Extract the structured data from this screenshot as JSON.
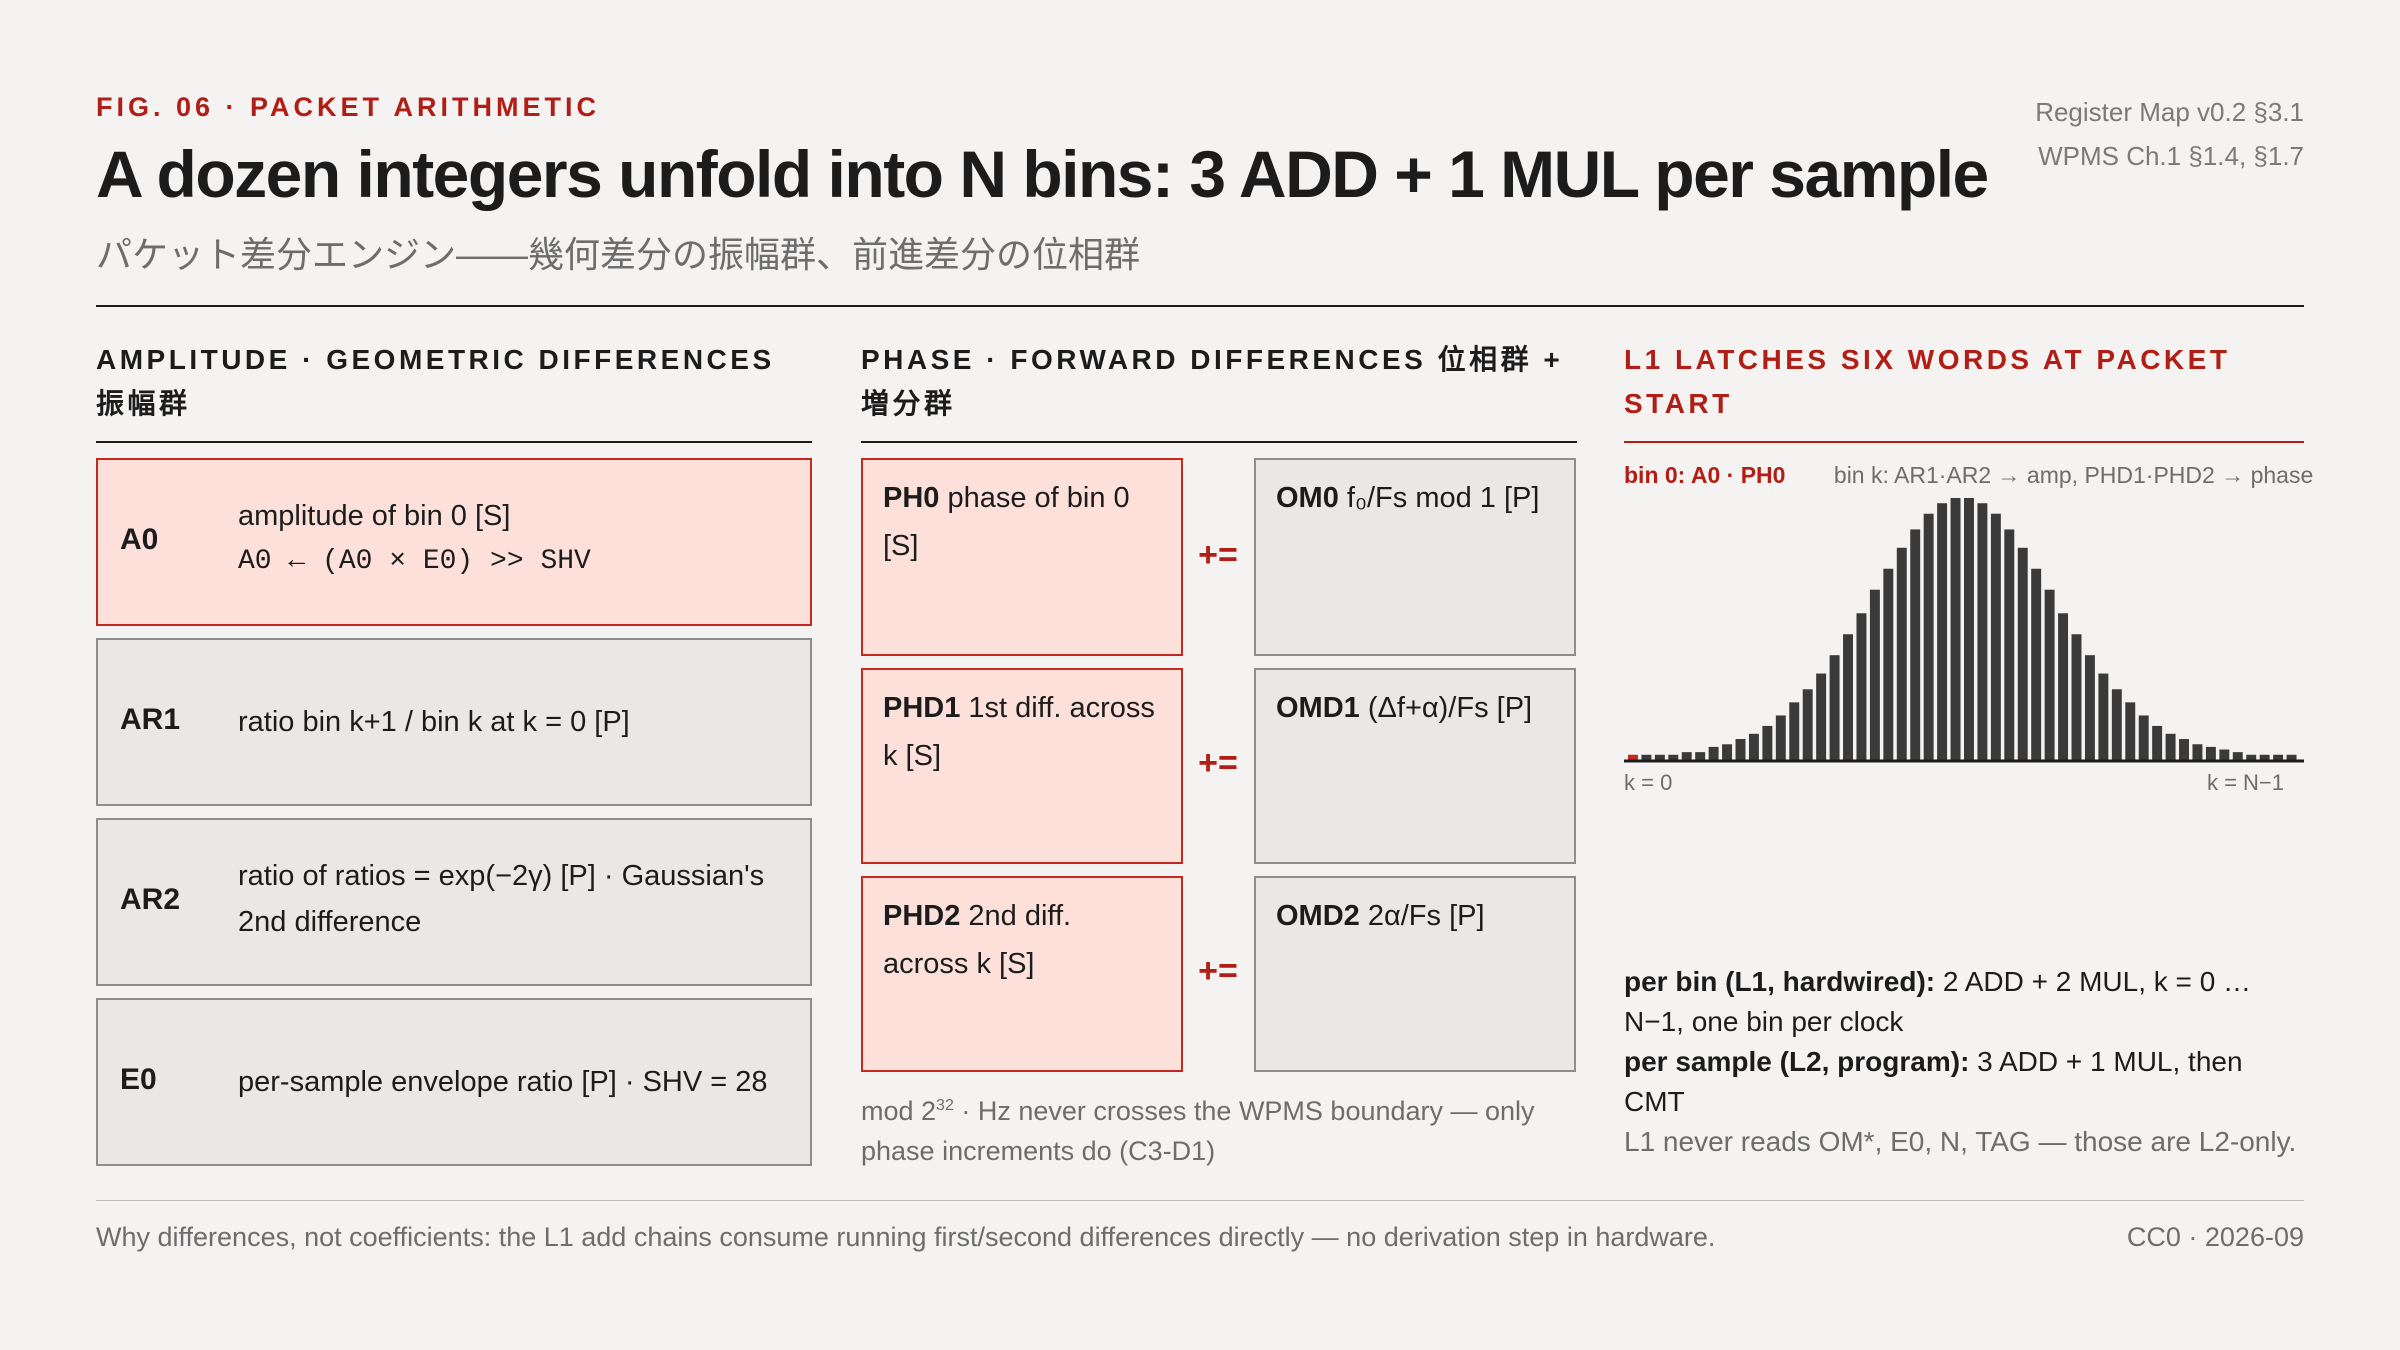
{
  "header": {
    "fig_label": "FIG. 06 · PACKET ARITHMETIC",
    "title": "A dozen integers unfold into N bins: 3 ADD + 1 MUL per sample",
    "subtitle": "パケット差分エンジン――幾何差分の振幅群、前進差分の位相群",
    "refs": [
      "Register Map v0.2 §3.1",
      "WPMS Ch.1 §1.4, §1.7"
    ]
  },
  "amplitude": {
    "heading_line1": "AMPLITUDE · GEOMETRIC DIFFERENCES",
    "heading_line2": "振幅群",
    "registers": [
      {
        "name": "A0",
        "desc": "amplitude of bin 0 [S]",
        "formula": "A0 ← (A0 × E0) >> SHV",
        "hot": true
      },
      {
        "name": "AR1",
        "desc": "ratio bin k+1 / bin k at k = 0 [P]",
        "hot": false
      },
      {
        "name": "AR2",
        "desc": "ratio of ratios = exp(−2γ) [P] · Gaussian's 2nd difference",
        "hot": false
      },
      {
        "name": "E0",
        "desc": "per-sample envelope ratio [P] · SHV = 28",
        "hot": false
      }
    ]
  },
  "phase": {
    "heading_line1": "PHASE · FORWARD DIFFERENCES 位相群 +",
    "heading_line2": "増分群",
    "operator": "+=",
    "rows": [
      {
        "left_name": "PH0",
        "left_desc": "phase of bin 0 [S]",
        "right_name": "OM0",
        "right_desc": "f₀/Fs mod 1 [P]"
      },
      {
        "left_name": "PHD1",
        "left_desc": "1st diff. across k [S]",
        "right_name": "OMD1",
        "right_desc": "(Δf+α)/Fs [P]"
      },
      {
        "left_name": "PHD2",
        "left_desc": "2nd diff. across k [S]",
        "right_name": "OMD2",
        "right_desc": "2α/Fs [P]"
      }
    ],
    "note_prefix": "mod 2",
    "note_exp": "32",
    "note_suffix": " · Hz never crosses the WPMS boundary — only phase increments do (C3-D1)"
  },
  "latch": {
    "heading_line1": "L1 LATCHES SIX WORDS AT PACKET",
    "heading_line2": "START",
    "chart_label_bin0": "bin 0: A0 · PH0",
    "chart_label_bink": "bin k: AR1·AR2 → amp, PHD1·PHD2 → phase",
    "axis_left": "k = 0",
    "axis_right": "k = N−1",
    "accent_color": "#c4281e",
    "bar_color": "#3a3a3a",
    "stats": [
      {
        "bold": "per bin (L1, hardwired):",
        "text": " 2 ADD + 2 MUL, k = 0 … N−1, one bin per clock"
      },
      {
        "bold": "per sample (L2, program):",
        "text": " 3 ADD + 1 MUL, then CMT"
      }
    ],
    "muted_note": "L1 never reads OM*, E0, N, TAG — those are L2-only."
  },
  "chart_data": {
    "type": "bar",
    "title": "",
    "xlabel": "",
    "ylabel": "",
    "x_range_labels": [
      "k = 0",
      "k = N−1"
    ],
    "highlight_first_bar": true,
    "values": [
      0.02,
      0.02,
      0.02,
      0.02,
      0.03,
      0.03,
      0.05,
      0.06,
      0.08,
      0.1,
      0.13,
      0.17,
      0.22,
      0.27,
      0.33,
      0.4,
      0.48,
      0.56,
      0.65,
      0.73,
      0.81,
      0.88,
      0.94,
      0.98,
      1.0,
      1.0,
      0.98,
      0.94,
      0.88,
      0.81,
      0.73,
      0.65,
      0.56,
      0.48,
      0.4,
      0.33,
      0.27,
      0.22,
      0.17,
      0.13,
      0.1,
      0.08,
      0.06,
      0.05,
      0.04,
      0.03,
      0.02,
      0.02,
      0.02,
      0.02
    ]
  },
  "footer": {
    "left": "Why differences, not coefficients: the L1 add chains consume running first/second differences directly — no derivation step in hardware.",
    "right": "CC0 · 2026-09"
  }
}
